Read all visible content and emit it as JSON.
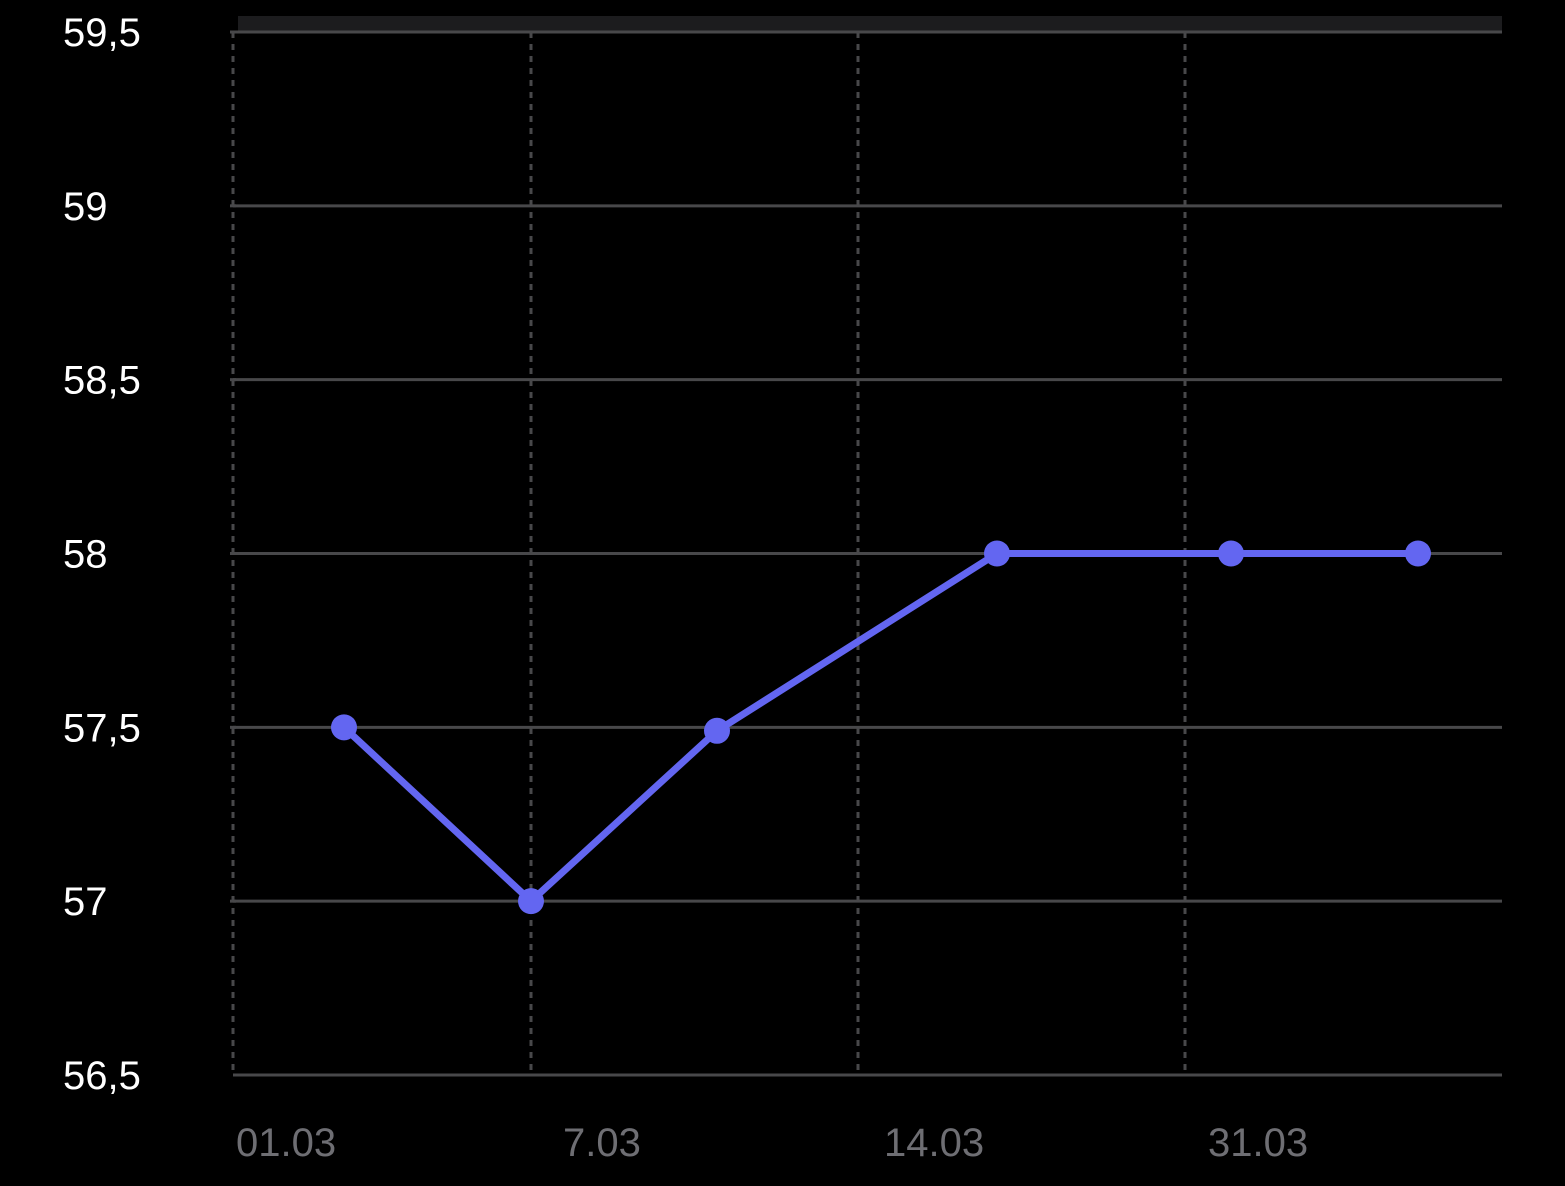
{
  "chart_data": {
    "type": "line",
    "title": "",
    "xlabel": "",
    "ylabel": "",
    "y_ticks": [
      "56,5",
      "57",
      "57,5",
      "58",
      "58,5",
      "59",
      "59,5"
    ],
    "x_ticks": [
      "01.03",
      "7.03",
      "14.03",
      "31.03"
    ],
    "ylim": [
      56.5,
      59.5
    ],
    "grid": {
      "horizontal": "solid",
      "vertical": "dashed"
    },
    "series": [
      {
        "values": [
          57.5,
          57.0,
          57.49,
          58.0,
          58.0,
          58.0
        ],
        "color": "#6366f1"
      }
    ],
    "colors": {
      "background": "#000000",
      "grid": "#48484a",
      "y_tick_text": "#ffffff",
      "x_tick_text": "#6e6e73",
      "line": "#6366f1"
    }
  }
}
